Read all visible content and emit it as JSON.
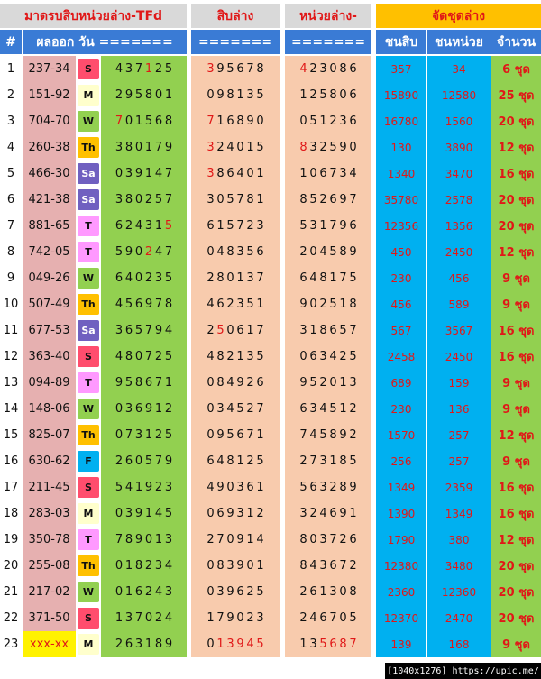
{
  "headers": {
    "title_stats": "มาดรบสิบหน่วยล่าง-TFd",
    "title_tens": "สิบล่าง",
    "title_units": "หน่วยล่าง-",
    "title_set": "จัดชุดล่าง",
    "hash": "#",
    "result_day": "ผลออก วัน =======",
    "tens_eq": "=======",
    "units_eq": "=======",
    "col_tens": "ชนสิบ",
    "col_units": "ชนหน่วย",
    "col_count": "จำนวน"
  },
  "colors": {
    "header_bg": "#d9d9d9",
    "subheader_bg": "#3a7bd5",
    "set_header_bg": "#ffc000",
    "result_bg": "#e6b0b0",
    "digits_bg": "#92d050",
    "tens_bg": "#f8cbad",
    "units_bg": "#f8cbad",
    "tens_col_bg": "#00b0f0",
    "units_col_bg": "#00b0f0",
    "count_bg": "#92d050",
    "day_S": "#ff4d6d",
    "day_M": "#ffffcc",
    "day_W": "#92d050",
    "day_Th": "#ffc000",
    "day_Sa": "#7060c0",
    "day_T": "#ff99ff",
    "day_F": "#00b0f0"
  },
  "rows": [
    {
      "n": "1",
      "result": "237-34",
      "day": "S",
      "digits": [
        "4",
        "3",
        "7",
        "1",
        "2",
        "5"
      ],
      "dr": [
        0,
        0,
        0,
        1,
        0,
        0
      ],
      "tens": [
        "3",
        "9",
        "5",
        "6",
        "7",
        "8"
      ],
      "tr": [
        1,
        0,
        0,
        0,
        0,
        0
      ],
      "units": [
        "4",
        "2",
        "3",
        "0",
        "8",
        "6"
      ],
      "ur": [
        1,
        0,
        0,
        0,
        0,
        0
      ],
      "ct": "357",
      "cu": "34",
      "cnt": "6 ชุด"
    },
    {
      "n": "2",
      "result": "151-92",
      "day": "M",
      "digits": [
        "2",
        "9",
        "5",
        "8",
        "0",
        "1"
      ],
      "dr": [
        0,
        0,
        0,
        0,
        0,
        0
      ],
      "tens": [
        "0",
        "9",
        "8",
        "1",
        "3",
        "5"
      ],
      "tr": [
        0,
        0,
        0,
        0,
        0,
        0
      ],
      "units": [
        "1",
        "2",
        "5",
        "8",
        "0",
        "6"
      ],
      "ur": [
        0,
        0,
        0,
        0,
        0,
        0
      ],
      "ct": "15890",
      "cu": "12580",
      "cnt": "25 ชุด"
    },
    {
      "n": "3",
      "result": "704-70",
      "day": "W",
      "digits": [
        "7",
        "0",
        "1",
        "5",
        "6",
        "8"
      ],
      "dr": [
        1,
        0,
        0,
        0,
        0,
        0
      ],
      "tens": [
        "7",
        "1",
        "6",
        "8",
        "9",
        "0"
      ],
      "tr": [
        1,
        0,
        0,
        0,
        0,
        0
      ],
      "units": [
        "0",
        "5",
        "1",
        "2",
        "3",
        "6"
      ],
      "ur": [
        0,
        0,
        0,
        0,
        0,
        0
      ],
      "ct": "16780",
      "cu": "1560",
      "cnt": "20 ชุด"
    },
    {
      "n": "4",
      "result": "260-38",
      "day": "Th",
      "digits": [
        "3",
        "8",
        "0",
        "1",
        "7",
        "9"
      ],
      "dr": [
        0,
        0,
        0,
        0,
        0,
        0
      ],
      "tens": [
        "3",
        "2",
        "4",
        "0",
        "1",
        "5"
      ],
      "tr": [
        1,
        0,
        0,
        0,
        0,
        0
      ],
      "units": [
        "8",
        "3",
        "2",
        "5",
        "9",
        "0"
      ],
      "ur": [
        1,
        0,
        0,
        0,
        0,
        0
      ],
      "ct": "130",
      "cu": "3890",
      "cnt": "12 ชุด"
    },
    {
      "n": "5",
      "result": "466-30",
      "day": "Sa",
      "digits": [
        "0",
        "3",
        "9",
        "1",
        "4",
        "7"
      ],
      "dr": [
        0,
        0,
        0,
        0,
        0,
        0
      ],
      "tens": [
        "3",
        "8",
        "6",
        "4",
        "0",
        "1"
      ],
      "tr": [
        1,
        0,
        0,
        0,
        0,
        0
      ],
      "units": [
        "1",
        "0",
        "6",
        "7",
        "3",
        "4"
      ],
      "ur": [
        0,
        0,
        0,
        0,
        0,
        0
      ],
      "ct": "1340",
      "cu": "3470",
      "cnt": "16 ชุด"
    },
    {
      "n": "6",
      "result": "421-38",
      "day": "Sa",
      "digits": [
        "3",
        "8",
        "0",
        "2",
        "5",
        "7"
      ],
      "dr": [
        0,
        0,
        0,
        0,
        0,
        0
      ],
      "tens": [
        "3",
        "0",
        "5",
        "7",
        "8",
        "1"
      ],
      "tr": [
        0,
        0,
        0,
        0,
        0,
        0
      ],
      "units": [
        "8",
        "5",
        "2",
        "6",
        "9",
        "7"
      ],
      "ur": [
        0,
        0,
        0,
        0,
        0,
        0
      ],
      "ct": "35780",
      "cu": "2578",
      "cnt": "20 ชุด"
    },
    {
      "n": "7",
      "result": "881-65",
      "day": "T",
      "digits": [
        "6",
        "2",
        "4",
        "3",
        "1",
        "5"
      ],
      "dr": [
        0,
        0,
        0,
        0,
        0,
        1
      ],
      "tens": [
        "6",
        "1",
        "5",
        "7",
        "2",
        "3"
      ],
      "tr": [
        0,
        0,
        0,
        0,
        0,
        0
      ],
      "units": [
        "5",
        "3",
        "1",
        "7",
        "9",
        "6"
      ],
      "ur": [
        0,
        0,
        0,
        0,
        0,
        0
      ],
      "ct": "12356",
      "cu": "1356",
      "cnt": "20 ชุด"
    },
    {
      "n": "8",
      "result": "742-05",
      "day": "T",
      "digits": [
        "5",
        "9",
        "0",
        "2",
        "4",
        "7"
      ],
      "dr": [
        0,
        0,
        0,
        1,
        0,
        0
      ],
      "tens": [
        "0",
        "4",
        "8",
        "3",
        "5",
        "6"
      ],
      "tr": [
        0,
        0,
        0,
        0,
        0,
        0
      ],
      "units": [
        "2",
        "0",
        "4",
        "5",
        "8",
        "9"
      ],
      "ur": [
        0,
        0,
        0,
        0,
        0,
        0
      ],
      "ct": "450",
      "cu": "2450",
      "cnt": "12 ชุด"
    },
    {
      "n": "9",
      "result": "049-26",
      "day": "W",
      "digits": [
        "6",
        "4",
        "0",
        "2",
        "3",
        "5"
      ],
      "dr": [
        0,
        0,
        0,
        0,
        0,
        0
      ],
      "tens": [
        "2",
        "8",
        "0",
        "1",
        "3",
        "7"
      ],
      "tr": [
        0,
        0,
        0,
        0,
        0,
        0
      ],
      "units": [
        "6",
        "4",
        "8",
        "1",
        "7",
        "5"
      ],
      "ur": [
        0,
        0,
        0,
        0,
        0,
        0
      ],
      "ct": "230",
      "cu": "456",
      "cnt": "9 ชุด"
    },
    {
      "n": "10",
      "result": "507-49",
      "day": "Th",
      "digits": [
        "4",
        "5",
        "6",
        "9",
        "7",
        "8"
      ],
      "dr": [
        0,
        0,
        0,
        0,
        0,
        0
      ],
      "tens": [
        "4",
        "6",
        "2",
        "3",
        "5",
        "1"
      ],
      "tr": [
        0,
        0,
        0,
        0,
        0,
        0
      ],
      "units": [
        "9",
        "0",
        "2",
        "5",
        "1",
        "8"
      ],
      "ur": [
        0,
        0,
        0,
        0,
        0,
        0
      ],
      "ct": "456",
      "cu": "589",
      "cnt": "9 ชุด"
    },
    {
      "n": "11",
      "result": "677-53",
      "day": "Sa",
      "digits": [
        "3",
        "6",
        "5",
        "7",
        "9",
        "4"
      ],
      "dr": [
        0,
        0,
        0,
        0,
        0,
        0
      ],
      "tens": [
        "2",
        "5",
        "0",
        "6",
        "1",
        "7"
      ],
      "tr": [
        0,
        1,
        0,
        0,
        0,
        0
      ],
      "units": [
        "3",
        "1",
        "8",
        "6",
        "5",
        "7"
      ],
      "ur": [
        0,
        0,
        0,
        0,
        0,
        0
      ],
      "ct": "567",
      "cu": "3567",
      "cnt": "16 ชุด"
    },
    {
      "n": "12",
      "result": "363-40",
      "day": "S",
      "digits": [
        "4",
        "8",
        "0",
        "7",
        "2",
        "5"
      ],
      "dr": [
        0,
        0,
        0,
        0,
        0,
        0
      ],
      "tens": [
        "4",
        "8",
        "2",
        "1",
        "3",
        "5"
      ],
      "tr": [
        0,
        0,
        0,
        0,
        0,
        0
      ],
      "units": [
        "0",
        "6",
        "3",
        "4",
        "2",
        "5"
      ],
      "ur": [
        0,
        0,
        0,
        0,
        0,
        0
      ],
      "ct": "2458",
      "cu": "2450",
      "cnt": "16 ชุด"
    },
    {
      "n": "13",
      "result": "094-89",
      "day": "T",
      "digits": [
        "9",
        "5",
        "8",
        "6",
        "7",
        "1"
      ],
      "dr": [
        0,
        0,
        0,
        0,
        0,
        0
      ],
      "tens": [
        "0",
        "8",
        "4",
        "9",
        "2",
        "6"
      ],
      "tr": [
        0,
        0,
        0,
        0,
        0,
        0
      ],
      "units": [
        "9",
        "5",
        "2",
        "0",
        "1",
        "3"
      ],
      "ur": [
        0,
        0,
        0,
        0,
        0,
        0
      ],
      "ct": "689",
      "cu": "159",
      "cnt": "9 ชุด"
    },
    {
      "n": "14",
      "result": "148-06",
      "day": "W",
      "digits": [
        "0",
        "3",
        "6",
        "9",
        "1",
        "2"
      ],
      "dr": [
        0,
        0,
        0,
        0,
        0,
        0
      ],
      "tens": [
        "0",
        "3",
        "4",
        "5",
        "2",
        "7"
      ],
      "tr": [
        0,
        0,
        0,
        0,
        0,
        0
      ],
      "units": [
        "6",
        "3",
        "4",
        "5",
        "1",
        "2"
      ],
      "ur": [
        0,
        0,
        0,
        0,
        0,
        0
      ],
      "ct": "230",
      "cu": "136",
      "cnt": "9 ชุด"
    },
    {
      "n": "15",
      "result": "825-07",
      "day": "Th",
      "digits": [
        "0",
        "7",
        "3",
        "1",
        "2",
        "5"
      ],
      "dr": [
        0,
        0,
        0,
        0,
        0,
        0
      ],
      "tens": [
        "0",
        "9",
        "5",
        "6",
        "7",
        "1"
      ],
      "tr": [
        0,
        0,
        0,
        0,
        0,
        0
      ],
      "units": [
        "7",
        "4",
        "5",
        "8",
        "9",
        "2"
      ],
      "ur": [
        0,
        0,
        0,
        0,
        0,
        0
      ],
      "ct": "1570",
      "cu": "257",
      "cnt": "12 ชุด"
    },
    {
      "n": "16",
      "result": "630-62",
      "day": "F",
      "digits": [
        "2",
        "6",
        "0",
        "5",
        "7",
        "9"
      ],
      "dr": [
        0,
        0,
        0,
        0,
        0,
        0
      ],
      "tens": [
        "6",
        "4",
        "8",
        "1",
        "2",
        "5"
      ],
      "tr": [
        0,
        0,
        0,
        0,
        0,
        0
      ],
      "units": [
        "2",
        "7",
        "3",
        "1",
        "8",
        "5"
      ],
      "ur": [
        0,
        0,
        0,
        0,
        0,
        0
      ],
      "ct": "256",
      "cu": "257",
      "cnt": "9 ชุด"
    },
    {
      "n": "17",
      "result": "211-45",
      "day": "S",
      "digits": [
        "5",
        "4",
        "1",
        "9",
        "2",
        "3"
      ],
      "dr": [
        0,
        0,
        0,
        0,
        0,
        0
      ],
      "tens": [
        "4",
        "9",
        "0",
        "3",
        "6",
        "1"
      ],
      "tr": [
        0,
        0,
        0,
        0,
        0,
        0
      ],
      "units": [
        "5",
        "6",
        "3",
        "2",
        "8",
        "9"
      ],
      "ur": [
        0,
        0,
        0,
        0,
        0,
        0
      ],
      "ct": "1349",
      "cu": "2359",
      "cnt": "16 ชุด"
    },
    {
      "n": "18",
      "result": "283-03",
      "day": "M",
      "digits": [
        "0",
        "3",
        "9",
        "1",
        "4",
        "5"
      ],
      "dr": [
        0,
        0,
        0,
        0,
        0,
        0
      ],
      "tens": [
        "0",
        "6",
        "9",
        "3",
        "1",
        "2"
      ],
      "tr": [
        0,
        0,
        0,
        0,
        0,
        0
      ],
      "units": [
        "3",
        "2",
        "4",
        "6",
        "9",
        "1"
      ],
      "ur": [
        0,
        0,
        0,
        0,
        0,
        0
      ],
      "ct": "1390",
      "cu": "1349",
      "cnt": "16 ชุด"
    },
    {
      "n": "19",
      "result": "350-78",
      "day": "T",
      "digits": [
        "7",
        "8",
        "9",
        "0",
        "1",
        "3"
      ],
      "dr": [
        0,
        0,
        0,
        0,
        0,
        0
      ],
      "tens": [
        "2",
        "7",
        "0",
        "9",
        "1",
        "4"
      ],
      "tr": [
        0,
        0,
        0,
        0,
        0,
        0
      ],
      "units": [
        "8",
        "0",
        "3",
        "7",
        "2",
        "6"
      ],
      "ur": [
        0,
        0,
        0,
        0,
        0,
        0
      ],
      "ct": "1790",
      "cu": "380",
      "cnt": "12 ชุด"
    },
    {
      "n": "20",
      "result": "255-08",
      "day": "Th",
      "digits": [
        "0",
        "1",
        "8",
        "2",
        "3",
        "4"
      ],
      "dr": [
        0,
        0,
        0,
        0,
        0,
        0
      ],
      "tens": [
        "0",
        "8",
        "3",
        "9",
        "0",
        "1"
      ],
      "tr": [
        0,
        0,
        0,
        0,
        0,
        0
      ],
      "units": [
        "8",
        "4",
        "3",
        "6",
        "7",
        "2"
      ],
      "ur": [
        0,
        0,
        0,
        0,
        0,
        0
      ],
      "ct": "12380",
      "cu": "3480",
      "cnt": "20 ชุด"
    },
    {
      "n": "21",
      "result": "217-02",
      "day": "W",
      "digits": [
        "0",
        "1",
        "6",
        "2",
        "4",
        "3"
      ],
      "dr": [
        0,
        0,
        0,
        0,
        0,
        0
      ],
      "tens": [
        "0",
        "3",
        "9",
        "6",
        "2",
        "5"
      ],
      "tr": [
        0,
        0,
        0,
        0,
        0,
        0
      ],
      "units": [
        "2",
        "6",
        "1",
        "3",
        "0",
        "8"
      ],
      "ur": [
        0,
        0,
        0,
        0,
        0,
        0
      ],
      "ct": "2360",
      "cu": "12360",
      "cnt": "20 ชุด"
    },
    {
      "n": "22",
      "result": "371-50",
      "day": "S",
      "digits": [
        "1",
        "3",
        "7",
        "0",
        "2",
        "4"
      ],
      "dr": [
        0,
        0,
        0,
        0,
        0,
        0
      ],
      "tens": [
        "1",
        "7",
        "9",
        "0",
        "2",
        "3"
      ],
      "tr": [
        0,
        0,
        0,
        0,
        0,
        0
      ],
      "units": [
        "2",
        "4",
        "6",
        "7",
        "0",
        "5"
      ],
      "ur": [
        0,
        0,
        0,
        0,
        0,
        0
      ],
      "ct": "12370",
      "cu": "2470",
      "cnt": "20 ชุด"
    },
    {
      "n": "23",
      "result": "xxx-xx",
      "day": "M",
      "digits": [
        "2",
        "6",
        "3",
        "1",
        "8",
        "9"
      ],
      "dr": [
        0,
        0,
        0,
        0,
        0,
        0
      ],
      "tens": [
        "0",
        "1",
        "3",
        "9",
        "4",
        "5"
      ],
      "tr": [
        0,
        1,
        1,
        1,
        1,
        1
      ],
      "units": [
        "1",
        "3",
        "5",
        "6",
        "8",
        "7"
      ],
      "ur": [
        0,
        0,
        1,
        1,
        1,
        1
      ],
      "ct": "139",
      "cu": "168",
      "cnt": "9 ชุด"
    }
  ],
  "footer": "[1040x1276] https://upic.me/"
}
